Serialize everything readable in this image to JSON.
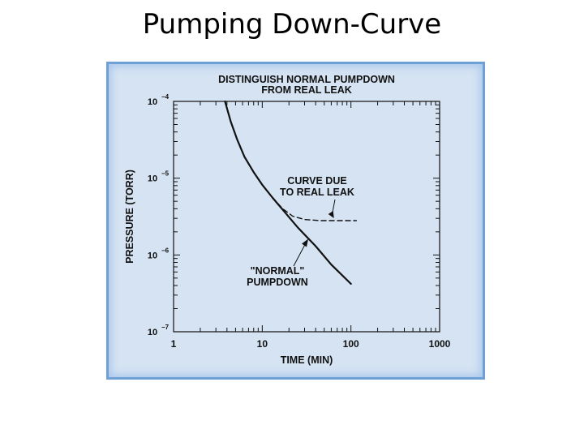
{
  "slide": {
    "title": "Pumping Down-Curve"
  },
  "chart_data": {
    "type": "line",
    "title": "DISTINGUISH NORMAL PUMPDOWN\nFROM REAL LEAK",
    "xlabel": "TIME (MIN)",
    "ylabel": "PRESSURE (TORR)",
    "x_scale": "log",
    "y_scale": "log",
    "xlim": [
      1,
      1000
    ],
    "ylim": [
      1e-07,
      0.0001
    ],
    "x_ticks": [
      "1",
      "10",
      "100",
      "1000"
    ],
    "y_ticks": [
      {
        "value": 0.0001,
        "base": "10",
        "exp": "−4"
      },
      {
        "value": 1e-05,
        "base": "10",
        "exp": "−5"
      },
      {
        "value": 1e-06,
        "base": "10",
        "exp": "−6"
      },
      {
        "value": 1e-07,
        "base": "10",
        "exp": "−7"
      }
    ],
    "series": [
      {
        "name": "\"NORMAL\"\nPUMPDOWN",
        "style": "solid",
        "x": [
          3.8,
          4.4,
          5.2,
          6.3,
          8.0,
          10.0,
          13.0,
          18.0,
          25.0,
          40.0,
          60.0,
          100.0
        ],
        "y": [
          0.0001,
          5.5e-05,
          3.2e-05,
          1.9e-05,
          1.2e-05,
          8.2e-06,
          5.6e-06,
          3.6e-06,
          2.3e-06,
          1.3e-06,
          7.5e-07,
          4.2e-07
        ]
      },
      {
        "name": "CURVE DUE\nTO REAL LEAK",
        "style": "dashed",
        "x": [
          10.0,
          13.0,
          17.0,
          22.0,
          30.0,
          45.0,
          70.0,
          115.0
        ],
        "y": [
          8.2e-06,
          5.6e-06,
          4e-06,
          3.2e-06,
          2.9e-06,
          2.8e-06,
          2.8e-06,
          2.8e-06
        ]
      }
    ],
    "grid": false,
    "colors": {
      "line": "#111111",
      "frame_bg": "#d5e3f3",
      "frame_border": "#6ea0d6"
    }
  }
}
